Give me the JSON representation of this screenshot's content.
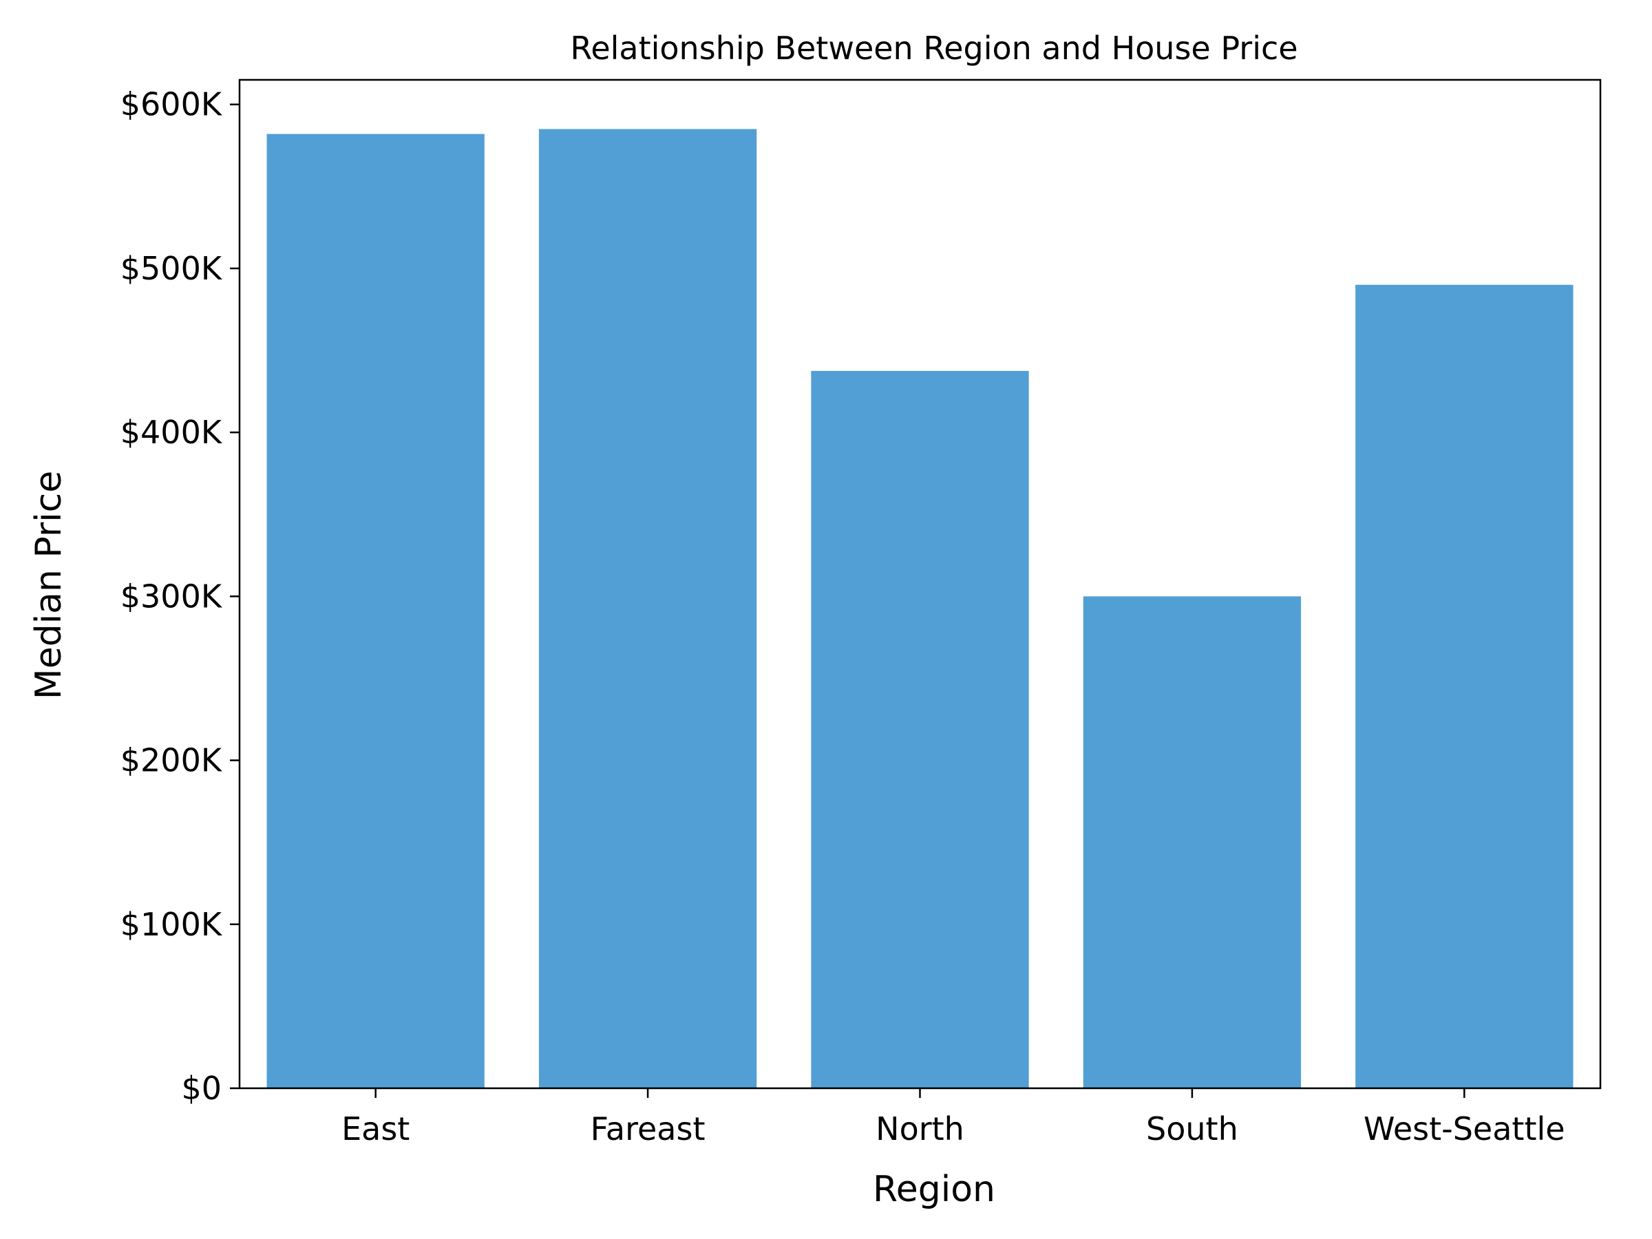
{
  "chart_data": {
    "type": "bar",
    "title": "Relationship Between Region and House Price",
    "xlabel": "Region",
    "ylabel": "Median Price",
    "categories": [
      "East",
      "Fareast",
      "North",
      "South",
      "West-Seattle"
    ],
    "values": [
      582000,
      585000,
      437500,
      300000,
      490000
    ],
    "ylim": [
      0,
      615000
    ],
    "yticks": [
      {
        "value": 0,
        "label": "$0"
      },
      {
        "value": 100000,
        "label": "$100K"
      },
      {
        "value": 200000,
        "label": "$200K"
      },
      {
        "value": 300000,
        "label": "$300K"
      },
      {
        "value": 400000,
        "label": "$400K"
      },
      {
        "value": 500000,
        "label": "$500K"
      },
      {
        "value": 600000,
        "label": "$600K"
      }
    ],
    "bar_color": "#529fd5",
    "grid": false,
    "legend": "none"
  }
}
